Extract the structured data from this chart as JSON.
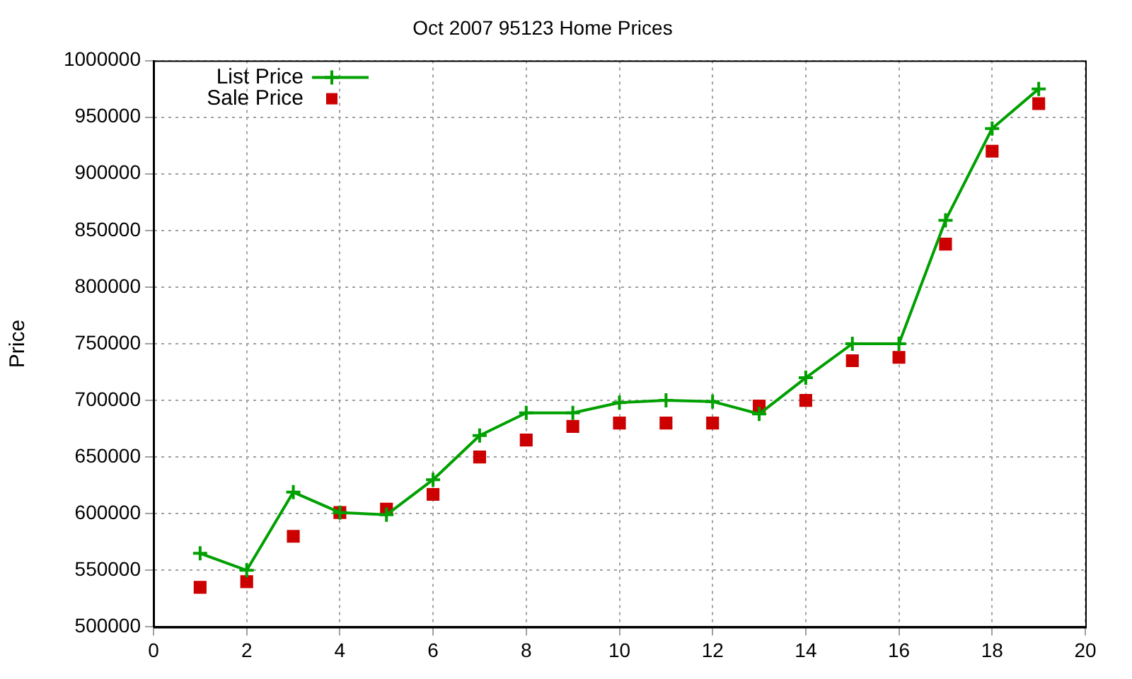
{
  "chart_data": {
    "type": "line",
    "title": "Oct 2007 95123 Home Prices",
    "ylabel": "Price",
    "x": [
      1,
      2,
      3,
      4,
      5,
      6,
      7,
      8,
      9,
      10,
      11,
      12,
      13,
      14,
      15,
      16,
      17,
      18,
      19
    ],
    "series": [
      {
        "name": "List Price",
        "color": "#00a000",
        "marker": "cross",
        "values": [
          565000,
          550000,
          619000,
          601000,
          599000,
          630000,
          669000,
          689000,
          689000,
          698000,
          700000,
          699000,
          688000,
          720000,
          750000,
          750000,
          859000,
          940000,
          975000
        ]
      },
      {
        "name": "Sale Price",
        "color": "#cc0000",
        "type": "scatter",
        "marker": "square",
        "values": [
          535000,
          540000,
          580000,
          601000,
          604000,
          617000,
          650000,
          665000,
          677000,
          680000,
          680000,
          680000,
          695000,
          700000,
          735000,
          738000,
          838000,
          920000,
          962000
        ]
      }
    ],
    "xlim": [
      0,
      20
    ],
    "xticks": [
      0,
      2,
      4,
      6,
      8,
      10,
      12,
      14,
      16,
      18,
      20
    ],
    "ylim": [
      500000,
      1000000
    ],
    "yticks": [
      500000,
      550000,
      600000,
      650000,
      700000,
      750000,
      800000,
      850000,
      900000,
      950000,
      1000000
    ],
    "grid": true,
    "legend": "top left"
  }
}
